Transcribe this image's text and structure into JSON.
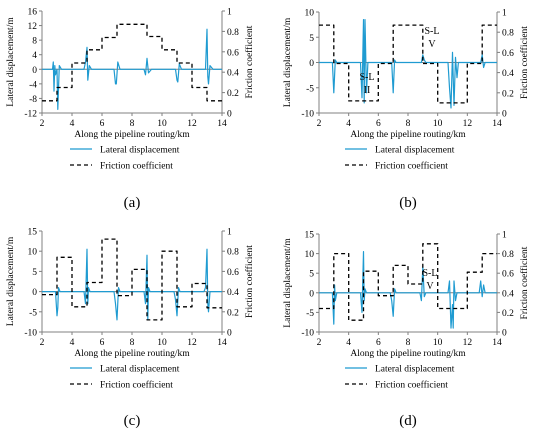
{
  "figure": {
    "colors": {
      "displacement": "#1f9bd1",
      "friction": "#000000",
      "axis": "#808080"
    },
    "legend": {
      "displacement_label": "Lateral displacement",
      "friction_label": "Friction coefficient"
    }
  },
  "chart_data": [
    {
      "panel_label": "(a)",
      "type": "line",
      "xlabel": "Along the pipeline routing/km",
      "ylabel": "Lateral displacement/m",
      "y2label": "Friction coefficient",
      "xlim": [
        2,
        14
      ],
      "ylim": [
        -12,
        16
      ],
      "y2lim": [
        0,
        1
      ],
      "xticks": [
        2,
        4,
        6,
        8,
        10,
        12,
        14
      ],
      "yticks": [
        -12,
        -8,
        -4,
        0,
        4,
        8,
        12,
        16
      ],
      "y2ticks": [
        0,
        0.2,
        0.4,
        0.6,
        0.8,
        1
      ],
      "grid": false,
      "legend_position": "bottom-center",
      "annotation": {
        "text": []
      },
      "series": [
        {
          "name": "Lateral displacement",
          "axis": "left",
          "x": [
            2.0,
            2.7,
            2.75,
            2.8,
            2.85,
            2.9,
            3.0,
            3.05,
            3.15,
            3.3,
            4.8,
            4.9,
            5.0,
            5.05,
            5.15,
            5.3,
            6.8,
            6.9,
            6.95,
            7.05,
            7.2,
            8.8,
            8.9,
            9.0,
            9.1,
            9.3,
            10.9,
            11.0,
            11.05,
            11.15,
            11.3,
            12.9,
            13.0,
            13.05,
            13.1,
            13.2,
            13.4,
            14.0
          ],
          "y": [
            0,
            0,
            2,
            -6,
            1,
            -1.5,
            0,
            -11,
            1,
            0,
            0,
            2,
            6,
            -3,
            1,
            0,
            0,
            -4,
            -4,
            2,
            0,
            0,
            -1.5,
            3,
            -1,
            0,
            0,
            -3,
            -3.5,
            1.5,
            0,
            0,
            11,
            -2,
            -4,
            1,
            0,
            0
          ]
        },
        {
          "name": "Friction coefficient",
          "axis": "right",
          "x": [
            2.0,
            3.0,
            3.0,
            4.0,
            4.0,
            5.0,
            5.0,
            6.0,
            6.0,
            7.0,
            7.0,
            9.0,
            9.0,
            10.0,
            10.0,
            11.0,
            11.0,
            12.0,
            12.0,
            13.0,
            13.0,
            14.0
          ],
          "y": [
            0.12,
            0.12,
            0.25,
            0.25,
            0.49,
            0.49,
            0.62,
            0.62,
            0.74,
            0.74,
            0.87,
            0.87,
            0.75,
            0.75,
            0.62,
            0.62,
            0.49,
            0.49,
            0.25,
            0.25,
            0.12,
            0.12
          ]
        }
      ]
    },
    {
      "panel_label": "(b)",
      "type": "line",
      "xlabel": "Along the pipeline routing/km",
      "ylabel": "Lateral displacement/m",
      "y2label": "Friction coefficient",
      "xlim": [
        2,
        14
      ],
      "ylim": [
        -10,
        10
      ],
      "y2lim": [
        0,
        1
      ],
      "xticks": [
        2,
        4,
        6,
        8,
        10,
        12,
        14
      ],
      "yticks": [
        -10,
        -5,
        0,
        5,
        10
      ],
      "y2ticks": [
        0,
        0.2,
        0.4,
        0.6,
        0.8,
        1
      ],
      "grid": false,
      "legend_position": "bottom-center",
      "annotation": {
        "text": [
          "S-L",
          "II",
          "S-L",
          "V"
        ]
      },
      "series": [
        {
          "name": "Lateral displacement",
          "axis": "left",
          "x": [
            2.0,
            2.9,
            3.0,
            3.1,
            3.2,
            4.8,
            4.9,
            5.0,
            5.05,
            5.1,
            5.2,
            5.3,
            6.9,
            7.0,
            7.1,
            7.2,
            8.9,
            9.0,
            9.1,
            9.2,
            10.7,
            10.8,
            10.9,
            11.0,
            11.1,
            11.2,
            11.3,
            11.4,
            12.9,
            13.0,
            13.1,
            13.2,
            14.0
          ],
          "y": [
            0,
            0,
            -6,
            0.5,
            0,
            0,
            -7,
            8.5,
            -8,
            8.5,
            -6,
            0,
            0,
            -6,
            0.5,
            0,
            0,
            1.5,
            0.5,
            0,
            0,
            -5,
            -9,
            2,
            -8.5,
            1,
            -3,
            0,
            0,
            1.5,
            -1,
            0,
            0
          ]
        },
        {
          "name": "Friction coefficient",
          "axis": "right",
          "x": [
            2.0,
            3.0,
            3.0,
            4.0,
            4.0,
            6.0,
            6.0,
            7.0,
            7.0,
            9.0,
            9.0,
            10.0,
            10.0,
            12.0,
            12.0,
            13.0,
            13.0,
            14.0
          ],
          "y": [
            0.87,
            0.87,
            0.49,
            0.49,
            0.12,
            0.12,
            0.49,
            0.49,
            0.87,
            0.87,
            0.49,
            0.49,
            0.1,
            0.1,
            0.49,
            0.49,
            0.87,
            0.87
          ]
        }
      ]
    },
    {
      "panel_label": "(c)",
      "type": "line",
      "xlabel": "Along the pipeline routing/km",
      "ylabel": "Lateral displacement/m",
      "y2label": "Friction coefficient",
      "xlim": [
        2,
        14
      ],
      "ylim": [
        -10,
        15
      ],
      "y2lim": [
        0,
        1
      ],
      "xticks": [
        2,
        4,
        6,
        8,
        10,
        12,
        14
      ],
      "yticks": [
        -10,
        -5,
        0,
        5,
        10,
        15
      ],
      "y2ticks": [
        0,
        0.2,
        0.4,
        0.6,
        0.8,
        1
      ],
      "grid": false,
      "legend_position": "bottom-center",
      "annotation": {
        "text": []
      },
      "series": [
        {
          "name": "Lateral displacement",
          "axis": "left",
          "x": [
            2.0,
            2.9,
            3.0,
            3.05,
            3.1,
            3.2,
            4.8,
            4.9,
            5.0,
            5.05,
            5.1,
            5.2,
            6.8,
            6.9,
            7.0,
            7.1,
            7.2,
            8.8,
            8.9,
            9.0,
            9.05,
            9.1,
            9.2,
            10.8,
            10.9,
            11.0,
            11.1,
            11.2,
            12.8,
            12.9,
            13.0,
            13.05,
            13.1,
            13.2,
            14.0
          ],
          "y": [
            0,
            0,
            -6,
            -4,
            1,
            0,
            0,
            -3,
            10.5,
            -3,
            1,
            0,
            0,
            -3,
            -7,
            1,
            0,
            0,
            -3,
            9,
            -7,
            1,
            0,
            0,
            -2,
            -6,
            1,
            0,
            0,
            1,
            10.5,
            -3,
            -5,
            0,
            0
          ]
        },
        {
          "name": "Friction coefficient",
          "axis": "right",
          "x": [
            2.0,
            3.0,
            3.0,
            4.0,
            4.0,
            5.0,
            5.0,
            6.0,
            6.0,
            7.0,
            7.0,
            8.0,
            8.0,
            9.0,
            9.0,
            10.0,
            10.0,
            11.0,
            11.0,
            12.0,
            12.0,
            13.0,
            13.0,
            14.0
          ],
          "y": [
            0.37,
            0.37,
            0.74,
            0.74,
            0.25,
            0.25,
            0.49,
            0.49,
            0.92,
            0.92,
            0.36,
            0.36,
            0.62,
            0.62,
            0.12,
            0.12,
            0.8,
            0.8,
            0.25,
            0.25,
            0.48,
            0.48,
            0.24,
            0.24
          ]
        }
      ]
    },
    {
      "panel_label": "(d)",
      "type": "line",
      "xlabel": "Along the pipeline routing/km",
      "ylabel": "Lateral displacement/m",
      "y2label": "Friction coefficient",
      "xlim": [
        2,
        14
      ],
      "ylim": [
        -10,
        15
      ],
      "y2lim": [
        0,
        1
      ],
      "xticks": [
        2,
        4,
        6,
        8,
        10,
        12,
        14
      ],
      "yticks": [
        -10,
        -5,
        0,
        5,
        10,
        15
      ],
      "y2ticks": [
        0,
        0.2,
        0.4,
        0.6,
        0.8,
        1
      ],
      "grid": false,
      "legend_position": "bottom-center",
      "annotation": {
        "text": [
          "S-L",
          "V"
        ]
      },
      "series": [
        {
          "name": "Lateral displacement",
          "axis": "left",
          "x": [
            2.0,
            2.9,
            3.0,
            3.05,
            3.1,
            3.2,
            4.8,
            4.9,
            5.0,
            5.05,
            5.1,
            5.2,
            6.8,
            6.9,
            7.0,
            7.1,
            7.2,
            8.8,
            8.9,
            9.0,
            9.1,
            9.2,
            10.7,
            10.8,
            10.9,
            11.0,
            11.05,
            11.1,
            11.2,
            11.3,
            12.8,
            12.9,
            13.0,
            13.1,
            13.2,
            14.0
          ],
          "y": [
            0,
            0,
            -8,
            2,
            -2,
            0,
            0,
            -5,
            10.5,
            -2,
            1,
            0,
            0,
            -2,
            -6,
            1,
            0,
            0,
            -2,
            6.5,
            -1,
            0,
            0,
            3,
            -9,
            -3,
            -9,
            3,
            -2,
            0,
            0,
            3,
            -1,
            2,
            0,
            0
          ]
        },
        {
          "name": "Friction coefficient",
          "axis": "right",
          "x": [
            2.0,
            3.0,
            3.0,
            4.0,
            4.0,
            5.0,
            5.0,
            6.0,
            6.0,
            7.0,
            7.0,
            8.0,
            8.0,
            9.0,
            9.0,
            10.0,
            10.0,
            12.0,
            12.0,
            13.0,
            13.0,
            14.0
          ],
          "y": [
            0.24,
            0.24,
            0.8,
            0.8,
            0.12,
            0.12,
            0.62,
            0.62,
            0.37,
            0.37,
            0.68,
            0.68,
            0.49,
            0.49,
            0.9,
            0.9,
            0.24,
            0.24,
            0.61,
            0.61,
            0.8,
            0.8
          ]
        }
      ]
    }
  ]
}
